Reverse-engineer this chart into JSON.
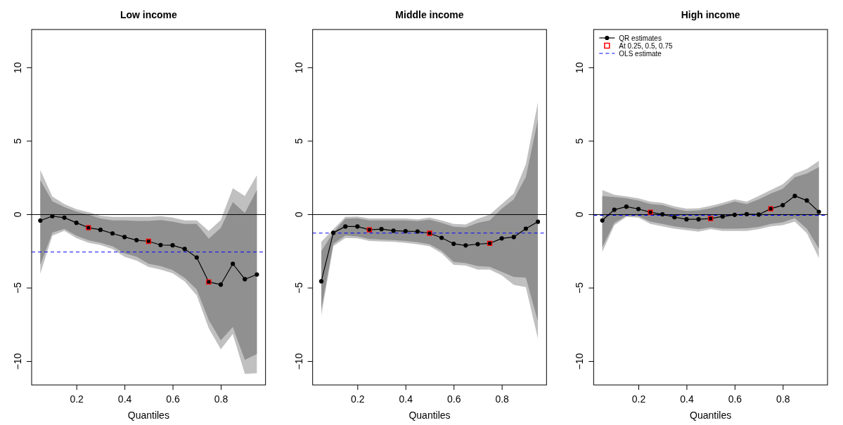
{
  "chart_data": [
    {
      "type": "line",
      "title": "Low income",
      "xlabel": "Quantiles",
      "x": [
        0.05,
        0.1,
        0.15,
        0.2,
        0.25,
        0.3,
        0.35,
        0.4,
        0.45,
        0.5,
        0.55,
        0.6,
        0.65,
        0.7,
        0.75,
        0.8,
        0.85,
        0.9,
        0.95
      ],
      "xlim": [
        0.014,
        0.986
      ],
      "xticks": [
        0.2,
        0.4,
        0.6,
        0.8
      ],
      "ylim": [
        -11.6,
        12.6
      ],
      "yticks": [
        -10,
        -5,
        0,
        5,
        10
      ],
      "grid": false,
      "legend": false,
      "series": [
        {
          "color": "#c0c0c0",
          "values": [
            null,
            null,
            null,
            null,
            null,
            null,
            null,
            null,
            null,
            null,
            null,
            null,
            null,
            null,
            null,
            null,
            null,
            null,
            null
          ],
          "lower": [
            -4.03,
            -1.44,
            -1.1,
            -1.6,
            -1.91,
            -2.07,
            -2.34,
            -2.87,
            -3.14,
            -3.56,
            -3.75,
            -3.99,
            -4.55,
            -5.5,
            -7.74,
            -9.17,
            -8.13,
            -10.85,
            -10.8
          ],
          "upper": [
            3.03,
            1.23,
            0.72,
            0.37,
            0.16,
            -0.08,
            -0.16,
            -0.16,
            -0.16,
            -0.16,
            -0.11,
            -0.21,
            -0.4,
            -0.4,
            -1.12,
            -0.37,
            1.79,
            1.26,
            2.68
          ]
        },
        {
          "color": "#909090",
          "values": [
            null,
            null,
            null,
            null,
            null,
            null,
            null,
            null,
            null,
            null,
            null,
            null,
            null,
            null,
            null,
            null,
            null,
            null,
            null
          ],
          "lower": [
            -3.43,
            -1.23,
            -0.97,
            -1.44,
            -1.75,
            -1.91,
            -2.15,
            -2.63,
            -2.87,
            -3.35,
            -3.51,
            -3.78,
            -4.31,
            -5.1,
            -7.18,
            -8.56,
            -7.66,
            -9.89,
            -9.49
          ],
          "upper": [
            2.34,
            0.91,
            0.51,
            0.2,
            0,
            -0.27,
            -0.4,
            -0.4,
            -0.43,
            -0.43,
            -0.37,
            -0.48,
            -0.64,
            -0.64,
            -1.64,
            -0.91,
            0.85,
            0.11,
            1.67
          ]
        },
        {
          "color": "#000000",
          "marker": "circle",
          "values": [
            -0.41,
            -0.11,
            -0.21,
            -0.56,
            -0.89,
            -1.04,
            -1.28,
            -1.53,
            -1.74,
            -1.82,
            -2.07,
            -2.09,
            -2.34,
            -2.92,
            -4.59,
            -4.77,
            -3.35,
            -4.4,
            -4.08
          ]
        },
        {
          "type": "scatter",
          "color": "#ff0000",
          "marker": "square",
          "x": [
            0.25,
            0.5,
            0.75
          ],
          "values": [
            -0.89,
            -1.82,
            -4.59
          ]
        }
      ],
      "ref_lines": [
        {
          "axis": "y",
          "value": 0,
          "color": "#000000",
          "line_style": "solid"
        },
        {
          "axis": "y",
          "value": -2.55,
          "color": "#0000ff",
          "line_style": "dashed"
        }
      ]
    },
    {
      "type": "line",
      "title": "Middle income",
      "xlabel": "Quantiles",
      "x": [
        0.05,
        0.1,
        0.15,
        0.2,
        0.25,
        0.3,
        0.35,
        0.4,
        0.45,
        0.5,
        0.55,
        0.6,
        0.65,
        0.7,
        0.75,
        0.8,
        0.85,
        0.9,
        0.95
      ],
      "xlim": [
        0.014,
        0.986
      ],
      "xticks": [
        0.2,
        0.4,
        0.6,
        0.8
      ],
      "ylim": [
        -11.6,
        12.6
      ],
      "yticks": [
        -10,
        -5,
        0,
        5,
        10
      ],
      "grid": false,
      "legend": false,
      "series": [
        {
          "color": "#c0c0c0",
          "values": [
            null,
            null,
            null,
            null,
            null,
            null,
            null,
            null,
            null,
            null,
            null,
            null,
            null,
            null,
            null,
            null,
            null,
            null,
            null
          ],
          "lower": [
            -6.85,
            -2.15,
            -1.59,
            -1.62,
            -1.8,
            -1.83,
            -1.86,
            -1.93,
            -2.02,
            -2.15,
            -2.63,
            -3.42,
            -3.47,
            -3.74,
            -3.74,
            -4.14,
            -4.78,
            -4.94,
            -8.44
          ],
          "upper": [
            -1.86,
            -1.0,
            -0.16,
            -0.13,
            -0.27,
            -0.27,
            -0.27,
            -0.27,
            -0.32,
            -0.21,
            -0.4,
            -0.64,
            -0.67,
            -0.29,
            0,
            0.72,
            1.43,
            3.42,
            7.64
          ]
        },
        {
          "color": "#909090",
          "values": [
            null,
            null,
            null,
            null,
            null,
            null,
            null,
            null,
            null,
            null,
            null,
            null,
            null,
            null,
            null,
            null,
            null,
            null,
            null
          ],
          "lower": [
            -6.45,
            -1.99,
            -1.43,
            -1.48,
            -1.67,
            -1.7,
            -1.73,
            -1.8,
            -1.88,
            -2.02,
            -2.47,
            -3.22,
            -3.3,
            -3.5,
            -3.55,
            -3.9,
            -4.25,
            -4.3,
            -7.25
          ],
          "upper": [
            -2.5,
            -1.2,
            -0.29,
            -0.25,
            -0.4,
            -0.4,
            -0.4,
            -0.4,
            -0.45,
            -0.35,
            -0.56,
            -0.83,
            -0.88,
            -0.56,
            -0.4,
            0.4,
            1.04,
            2.55,
            6.45
          ]
        },
        {
          "color": "#000000",
          "marker": "circle",
          "values": [
            -4.54,
            -1.24,
            -0.81,
            -0.81,
            -1.04,
            -0.99,
            -1.1,
            -1.13,
            -1.15,
            -1.27,
            -1.58,
            -1.99,
            -2.1,
            -2.01,
            -1.96,
            -1.62,
            -1.53,
            -0.96,
            -0.49
          ]
        },
        {
          "type": "scatter",
          "color": "#ff0000",
          "marker": "square",
          "x": [
            0.25,
            0.5,
            0.75
          ],
          "values": [
            -1.04,
            -1.27,
            -1.96
          ]
        }
      ],
      "ref_lines": [
        {
          "axis": "y",
          "value": 0,
          "color": "#000000",
          "line_style": "solid"
        },
        {
          "axis": "y",
          "value": -1.26,
          "color": "#0000ff",
          "line_style": "dashed"
        }
      ]
    },
    {
      "type": "line",
      "title": "High income",
      "xlabel": "Quantiles",
      "x": [
        0.05,
        0.1,
        0.15,
        0.2,
        0.25,
        0.3,
        0.35,
        0.4,
        0.45,
        0.5,
        0.55,
        0.6,
        0.65,
        0.7,
        0.75,
        0.8,
        0.85,
        0.9,
        0.95
      ],
      "xlim": [
        0.014,
        0.986
      ],
      "xticks": [
        0.2,
        0.4,
        0.6,
        0.8
      ],
      "ylim": [
        -11.6,
        12.6
      ],
      "yticks": [
        -10,
        -5,
        0,
        5,
        10
      ],
      "grid": false,
      "legend": "top left",
      "series": [
        {
          "color": "#c0c0c0",
          "values": [
            null,
            null,
            null,
            null,
            null,
            null,
            null,
            null,
            null,
            null,
            null,
            null,
            null,
            null,
            null,
            null,
            null,
            null,
            null
          ],
          "lower": [
            -2.55,
            -0.72,
            -0.16,
            -0.21,
            -0.64,
            -0.8,
            -0.96,
            -1.07,
            -1.16,
            -1.0,
            -1.11,
            -1.11,
            -1.11,
            -1.0,
            -0.8,
            -0.72,
            -0.48,
            -1.27,
            -2.95
          ],
          "upper": [
            1.67,
            1.35,
            1.24,
            1.11,
            0.88,
            0.8,
            0.56,
            0.4,
            0.43,
            0.59,
            0.8,
            1.04,
            0.88,
            1.27,
            1.67,
            2.07,
            2.79,
            3.11,
            3.66
          ]
        },
        {
          "color": "#909090",
          "values": [
            null,
            null,
            null,
            null,
            null,
            null,
            null,
            null,
            null,
            null,
            null,
            null,
            null,
            null,
            null,
            null,
            null,
            null,
            null
          ],
          "lower": [
            -2.23,
            -0.56,
            -0.08,
            -0.11,
            -0.48,
            -0.64,
            -0.8,
            -0.91,
            -1.0,
            -0.88,
            -0.96,
            -0.96,
            -0.93,
            -0.84,
            -0.64,
            -0.53,
            -0.24,
            -0.96,
            -2.31
          ],
          "upper": [
            1.27,
            1.19,
            1.11,
            0.96,
            0.72,
            0.64,
            0.4,
            0.24,
            0.29,
            0.43,
            0.64,
            0.88,
            0.72,
            1.04,
            1.43,
            1.75,
            2.55,
            2.79,
            3.23
          ]
        },
        {
          "name": "QR estimates",
          "color": "#000000",
          "marker": "circle",
          "values": [
            -0.4,
            0.33,
            0.54,
            0.38,
            0.16,
            0.02,
            -0.18,
            -0.32,
            -0.32,
            -0.27,
            -0.13,
            -0.02,
            0.03,
            0,
            0.4,
            0.64,
            1.27,
            0.96,
            0.19
          ]
        },
        {
          "type": "scatter",
          "name": "At 0.25, 0.5, 0.75",
          "color": "#ff0000",
          "marker": "square",
          "x": [
            0.25,
            0.5,
            0.75
          ],
          "values": [
            0.16,
            -0.27,
            0.4
          ]
        }
      ],
      "ref_lines": [
        {
          "axis": "y",
          "value": 0,
          "color": "#000000",
          "line_style": "solid"
        },
        {
          "axis": "y",
          "value": -0.05,
          "label": "OLS estimate",
          "color": "#0000ff",
          "line_style": "dashed"
        }
      ]
    }
  ]
}
